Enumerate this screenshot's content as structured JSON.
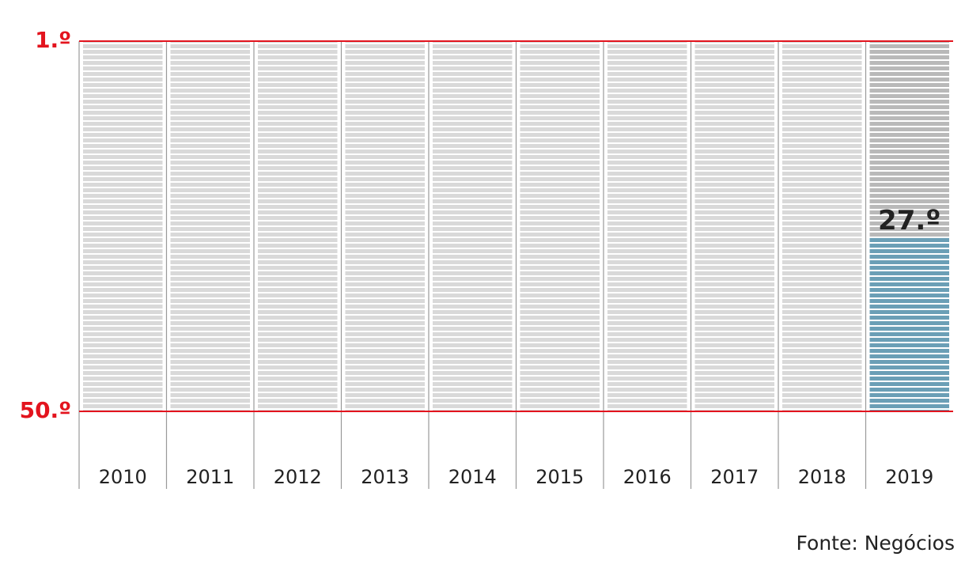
{
  "chart_data": {
    "type": "bar",
    "categories": [
      "2010",
      "2011",
      "2012",
      "2013",
      "2014",
      "2015",
      "2016",
      "2017",
      "2018",
      "2019"
    ],
    "values": [
      null,
      null,
      null,
      null,
      null,
      null,
      null,
      null,
      null,
      27
    ],
    "value_labels": [
      null,
      null,
      null,
      null,
      null,
      null,
      null,
      null,
      null,
      "27.º"
    ],
    "color": "#6b9fb6",
    "ylim": [
      50,
      1
    ],
    "yticks": [
      {
        "value": 1,
        "label": "1.º"
      },
      {
        "value": 50,
        "label": "50.º"
      }
    ],
    "source": "Fonte: Negócios"
  }
}
